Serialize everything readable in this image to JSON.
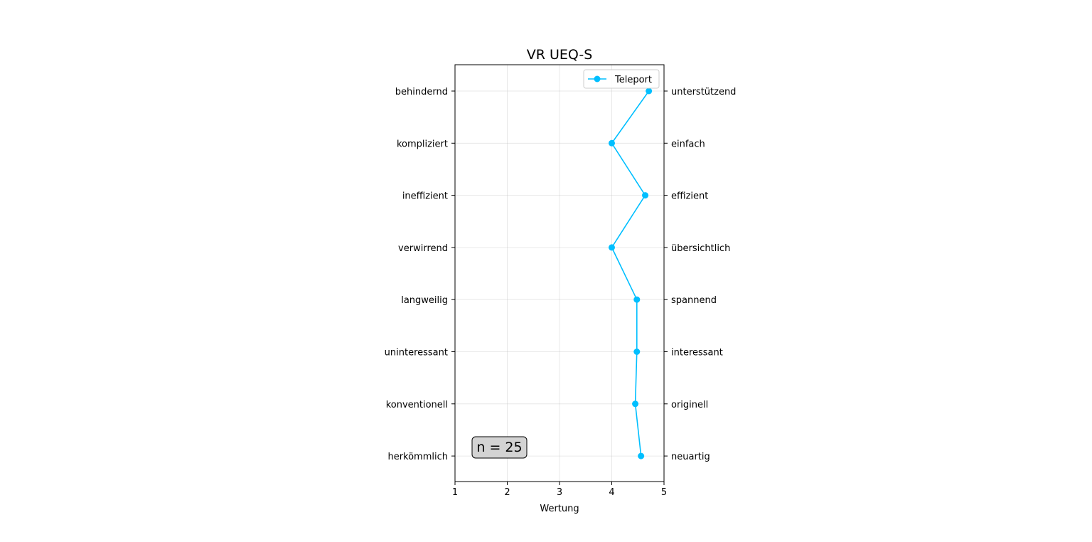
{
  "chart_data": {
    "type": "line",
    "title": "VR UEQ-S",
    "xlabel": "Wertung",
    "ylabel": "",
    "xlim": [
      1,
      5
    ],
    "x_ticks": [
      "1",
      "2",
      "3",
      "4",
      "5"
    ],
    "grid": true,
    "legend_position": "top-right",
    "items_left": [
      "behindernd",
      "kompliziert",
      "ineffizient",
      "verwirrend",
      "langweilig",
      "uninteressant",
      "konventionell",
      "herkömmlich"
    ],
    "items_right": [
      "unterstützend",
      "einfach",
      "effizient",
      "übersichtlich",
      "spannend",
      "interessant",
      "originell",
      "neuartig"
    ],
    "series": [
      {
        "name": "Teleport",
        "color": "#00bfff",
        "marker": "circle",
        "values": [
          4.71,
          4.0,
          4.64,
          4.0,
          4.48,
          4.48,
          4.45,
          4.56
        ]
      }
    ],
    "annotation": {
      "text": "n = 25",
      "position": "bottom-left"
    }
  }
}
